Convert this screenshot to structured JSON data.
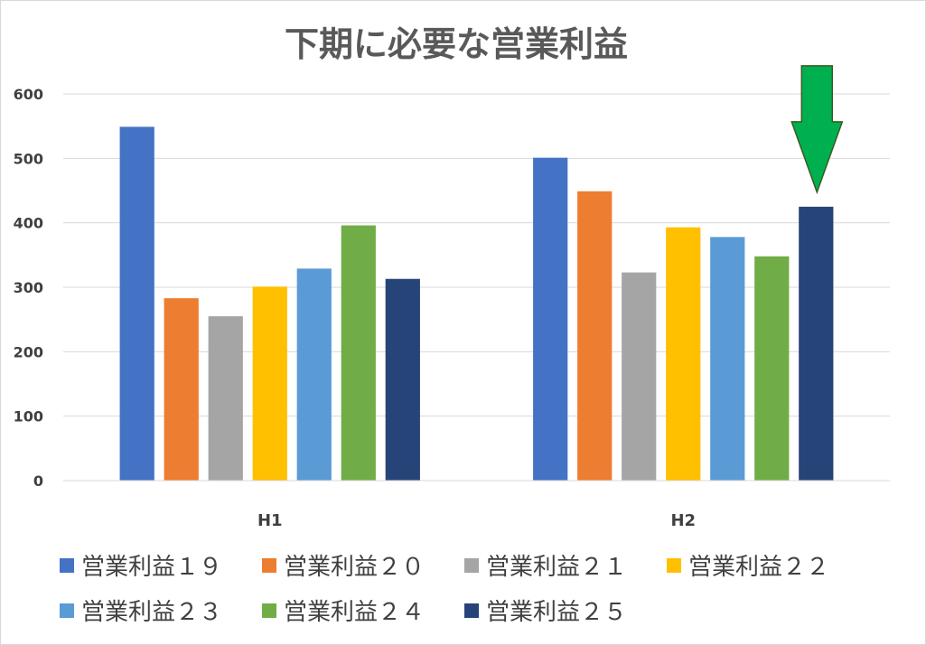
{
  "chart_data": {
    "type": "bar",
    "title": "下期に必要な営業利益",
    "categories": [
      "H1",
      "H2"
    ],
    "ylim": [
      0,
      600
    ],
    "yticks": [
      0,
      100,
      200,
      300,
      400,
      500,
      600
    ],
    "grid": true,
    "legend_position": "bottom",
    "series": [
      {
        "name": "営業利益１９",
        "color": "#4472c4",
        "values": [
          549,
          501
        ]
      },
      {
        "name": "営業利益２０",
        "color": "#ed7d31",
        "values": [
          283,
          449
        ]
      },
      {
        "name": "営業利益２１",
        "color": "#a5a5a5",
        "values": [
          255,
          323
        ]
      },
      {
        "name": "営業利益２２",
        "color": "#ffc000",
        "values": [
          301,
          393
        ]
      },
      {
        "name": "営業利益２３",
        "color": "#5b9bd5",
        "values": [
          329,
          378
        ]
      },
      {
        "name": "営業利益２４",
        "color": "#70ad47",
        "values": [
          396,
          348
        ]
      },
      {
        "name": "営業利益２５",
        "color": "#264478",
        "values": [
          313,
          425
        ]
      }
    ],
    "annotation": {
      "type": "arrow-down",
      "color": "#00b050",
      "target_series": "営業利益２５",
      "target_category": "H2"
    }
  }
}
